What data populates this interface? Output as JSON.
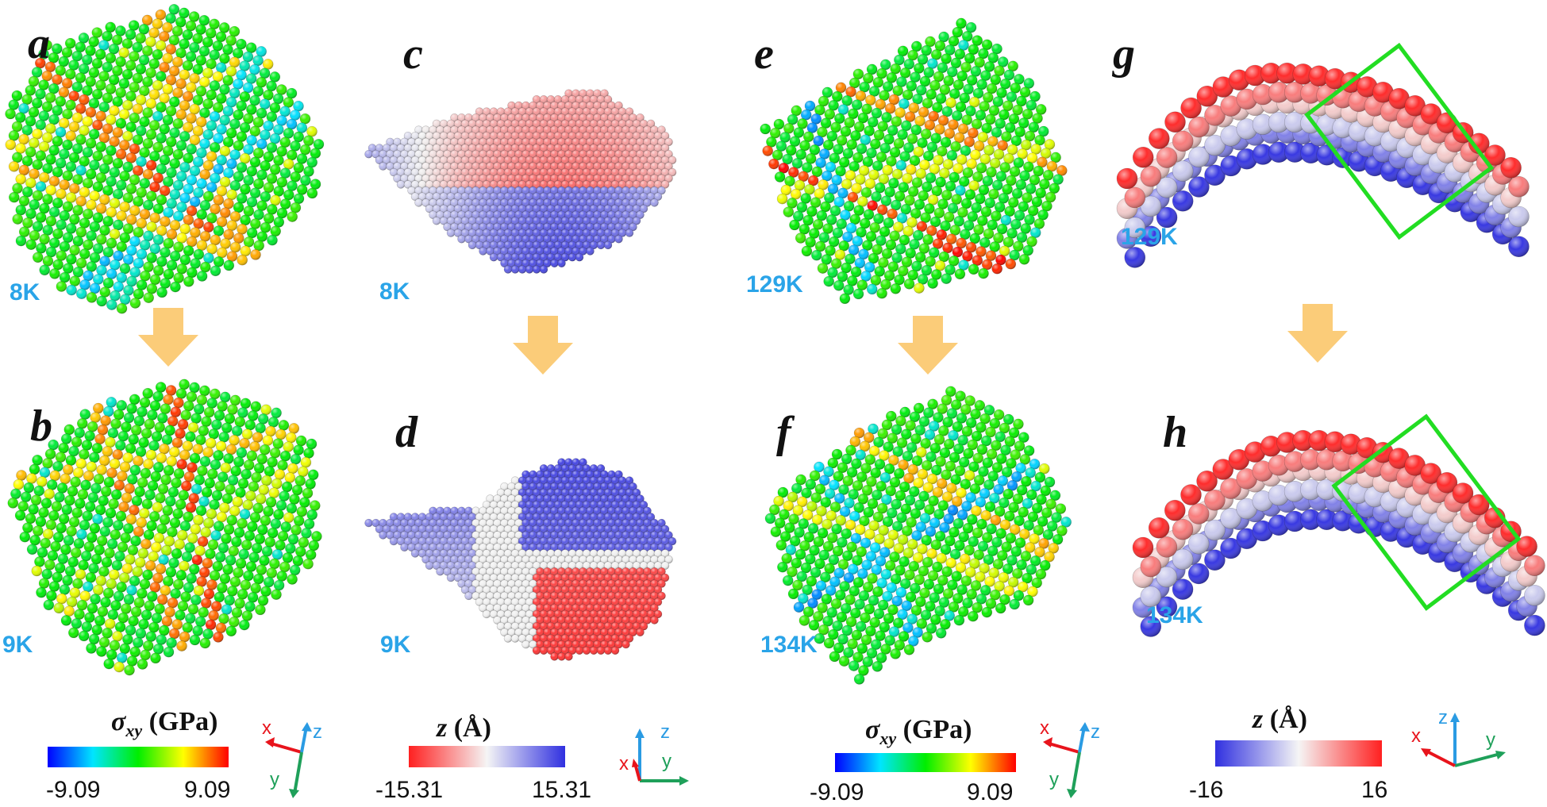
{
  "panels": [
    {
      "id": "a",
      "letter": "a",
      "temp": "8K",
      "kind": "stress"
    },
    {
      "id": "b",
      "letter": "b",
      "temp": "9K",
      "kind": "stress"
    },
    {
      "id": "c",
      "letter": "c",
      "temp": "8K",
      "kind": "height"
    },
    {
      "id": "d",
      "letter": "d",
      "temp": "9K",
      "kind": "height"
    },
    {
      "id": "e",
      "letter": "e",
      "temp": "129K",
      "kind": "stress"
    },
    {
      "id": "f",
      "letter": "f",
      "temp": "134K",
      "kind": "stress"
    },
    {
      "id": "g",
      "letter": "g",
      "temp": "129K",
      "kind": "arch"
    },
    {
      "id": "h",
      "letter": "h",
      "temp": "134K",
      "kind": "arch"
    }
  ],
  "colorbars": [
    {
      "id": "stress-1",
      "title_sym": "σ",
      "title_sub": "xy",
      "title_unit": " (GPa)",
      "min": "-9.09",
      "max": "9.09",
      "stops": [
        "#0000ff",
        "#00e5ff",
        "#00ee00",
        "#ffff00",
        "#ff0000"
      ]
    },
    {
      "id": "z-1",
      "title_sym": "z",
      "title_sub": "",
      "title_unit": " (Å)",
      "min": "-15.31",
      "max": "15.31",
      "stops": [
        "#ff2020",
        "#f5f5f5",
        "#3030e0"
      ]
    },
    {
      "id": "stress-2",
      "title_sym": "σ",
      "title_sub": "xy",
      "title_unit": " (GPa)",
      "min": "-9.09",
      "max": "9.09",
      "stops": [
        "#0000ff",
        "#00e5ff",
        "#00ee00",
        "#ffff00",
        "#ff0000"
      ]
    },
    {
      "id": "z-2",
      "title_sym": "z",
      "title_sub": "",
      "title_unit": " (Å)",
      "min": "-16",
      "max": "16",
      "stops": [
        "#3030e0",
        "#f5f5f5",
        "#ff2020"
      ]
    }
  ],
  "axes": [
    {
      "id": "axes-1",
      "labels": [
        "x",
        "z",
        "y"
      ]
    },
    {
      "id": "axes-2",
      "labels": [
        "z",
        "x",
        "y"
      ]
    },
    {
      "id": "axes-3",
      "labels": [
        "x",
        "z",
        "y"
      ]
    },
    {
      "id": "axes-4",
      "labels": [
        "z",
        "x",
        "y"
      ]
    }
  ],
  "colors": {
    "temp_label": "#2aa4e8",
    "arrow": "#fbc66a",
    "box": "#22dd22",
    "axis_x": "#e8141c",
    "axis_y": "#1fa05a",
    "axis_z": "#2a9be3"
  }
}
